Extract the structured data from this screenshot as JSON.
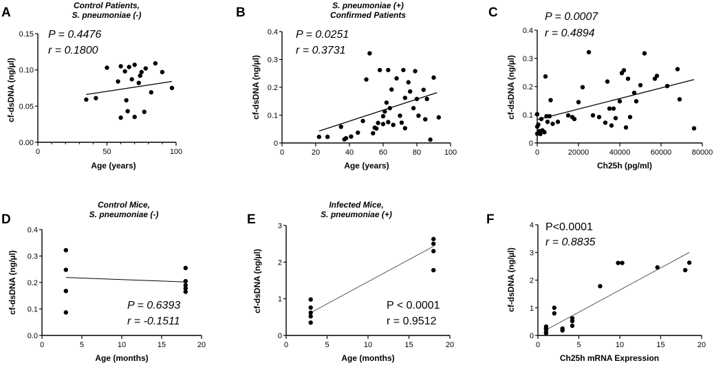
{
  "chart_data": [
    {
      "id": "A",
      "letter": "A",
      "type": "scatter",
      "title": [
        "Control Patients,",
        "S. pneumoniae (-)"
      ],
      "xlabel": "Age (years)",
      "ylabel": "cf-dsDNA (ng/µl)",
      "xlim": [
        0,
        100
      ],
      "ylim": [
        0,
        0.15
      ],
      "xticks": [
        0,
        50,
        100
      ],
      "xtick_labels": [
        "0",
        "50",
        "100"
      ],
      "xminor": 10,
      "yticks": [
        0,
        0.05,
        0.1,
        0.15
      ],
      "ytick_labels": [
        "0.00",
        "0.05",
        "0.10",
        "0.15"
      ],
      "stats": [
        "P = 0.4476",
        "r = 0.1800"
      ],
      "stats_italic": [
        true,
        true
      ],
      "fit": {
        "x": [
          35,
          97
        ],
        "y": [
          0.066,
          0.084
        ]
      },
      "x": [
        35,
        42,
        50,
        58,
        60,
        60,
        63,
        64,
        65,
        66,
        68,
        70,
        70,
        73,
        74,
        75,
        77,
        78,
        82,
        85,
        90,
        97
      ],
      "y": [
        0.059,
        0.061,
        0.103,
        0.084,
        0.034,
        0.105,
        0.098,
        0.058,
        0.043,
        0.104,
        0.087,
        0.107,
        0.035,
        0.082,
        0.092,
        0.097,
        0.042,
        0.102,
        0.069,
        0.109,
        0.097,
        0.075
      ]
    },
    {
      "id": "B",
      "letter": "B",
      "type": "scatter",
      "title": [
        "S. pneumoniae (+)",
        "Confirmed Patients"
      ],
      "xlabel": "Age (years)",
      "ylabel": "cf-dsDNA (ng/µl)",
      "xlim": [
        0,
        100
      ],
      "ylim": [
        0,
        0.4
      ],
      "xticks": [
        0,
        20,
        40,
        60,
        80,
        100
      ],
      "xtick_labels": [
        "0",
        "20",
        "40",
        "60",
        "80",
        "100"
      ],
      "xminor": 0,
      "yticks": [
        0,
        0.1,
        0.2,
        0.3,
        0.4
      ],
      "ytick_labels": [
        "0",
        "0.1",
        "0.2",
        "0.3",
        "0.4"
      ],
      "stats": [
        "P = 0.0251",
        "r = 0.3731"
      ],
      "stats_italic": [
        true,
        true
      ],
      "fit": {
        "x": [
          22,
          92
        ],
        "y": [
          0.043,
          0.181
        ]
      },
      "x": [
        22,
        27,
        35,
        37,
        38,
        41,
        45,
        48,
        50,
        52,
        54,
        55,
        56,
        57,
        58,
        60,
        60,
        61,
        62,
        63,
        63,
        64,
        65,
        66,
        68,
        70,
        71,
        72,
        73,
        73,
        75,
        76,
        78,
        79,
        80,
        81,
        84,
        85,
        86,
        88,
        90,
        93
      ],
      "y": [
        0.022,
        0.022,
        0.058,
        0.013,
        0.017,
        0.023,
        0.037,
        0.079,
        0.228,
        0.322,
        0.035,
        0.055,
        0.052,
        0.072,
        0.262,
        0.068,
        0.096,
        0.113,
        0.145,
        0.075,
        0.262,
        0.125,
        0.192,
        0.065,
        0.232,
        0.098,
        0.073,
        0.262,
        0.053,
        0.162,
        0.218,
        0.185,
        0.125,
        0.258,
        0.158,
        0.098,
        0.191,
        0.085,
        0.158,
        0.012,
        0.235,
        0.092
      ]
    },
    {
      "id": "C",
      "letter": "C",
      "type": "scatter",
      "title": [],
      "xlabel": "Ch25h (pg/ml)",
      "ylabel": "cf-dsDNA (ng/µl)",
      "xlim": [
        0,
        80000
      ],
      "ylim": [
        0,
        0.4
      ],
      "xticks": [
        0,
        20000,
        40000,
        60000,
        80000
      ],
      "xtick_labels": [
        "0",
        "20000",
        "40000",
        "60000",
        "80000"
      ],
      "xminor": 0,
      "yticks": [
        0,
        0.1,
        0.2,
        0.3,
        0.4
      ],
      "ytick_labels": [
        "0",
        "0.1",
        "0.2",
        "0.3",
        "0.4"
      ],
      "stats": [
        "P = 0.0007",
        "r = 0.4894"
      ],
      "stats_italic": [
        true,
        true
      ],
      "fit": {
        "x": [
          0,
          76000
        ],
        "y": [
          0.083,
          0.225
        ]
      },
      "x": [
        0,
        0,
        0,
        500,
        1000,
        1500,
        2000,
        2500,
        3500,
        4000,
        4500,
        5000,
        6000,
        6500,
        7500,
        10000,
        15000,
        17000,
        18000,
        20000,
        22000,
        25000,
        27000,
        30000,
        33000,
        34000,
        35000,
        36000,
        37000,
        38000,
        40000,
        41000,
        42000,
        43000,
        44000,
        45000,
        47000,
        48000,
        50000,
        52000,
        57000,
        58000,
        63000,
        68000,
        69000,
        76000
      ],
      "y": [
        0.033,
        0.058,
        0.102,
        0.065,
        0.042,
        0.032,
        0.085,
        0.045,
        0.038,
        0.236,
        0.095,
        0.075,
        0.095,
        0.152,
        0.068,
        0.075,
        0.098,
        0.092,
        0.085,
        0.145,
        0.198,
        0.322,
        0.098,
        0.092,
        0.072,
        0.218,
        0.122,
        0.062,
        0.122,
        0.088,
        0.148,
        0.248,
        0.258,
        0.055,
        0.228,
        0.092,
        0.178,
        0.148,
        0.205,
        0.318,
        0.228,
        0.238,
        0.202,
        0.262,
        0.155,
        0.052
      ]
    },
    {
      "id": "D",
      "letter": "D",
      "type": "scatter",
      "title": [
        "Control Mice,",
        "S. pneumoniae (-)"
      ],
      "xlabel": "Age (months)",
      "ylabel": "cf-dsDNA (ng/µl)",
      "xlim": [
        0,
        20
      ],
      "ylim": [
        0,
        0.4
      ],
      "xticks": [
        0,
        5,
        10,
        15,
        20
      ],
      "xtick_labels": [
        "0",
        "5",
        "10",
        "15",
        "20"
      ],
      "xminor": 0,
      "yticks": [
        0,
        0.1,
        0.2,
        0.3,
        0.4
      ],
      "ytick_labels": [
        "0.0",
        "0.1",
        "0.2",
        "0.3",
        "0.4"
      ],
      "stats": [
        "P = 0.6393",
        "r = -0.1511"
      ],
      "stats_italic": [
        true,
        true
      ],
      "fit": {
        "x": [
          3,
          18
        ],
        "y": [
          0.219,
          0.202
        ]
      },
      "x": [
        3,
        3,
        3,
        3,
        18,
        18,
        18,
        18,
        18
      ],
      "y": [
        0.322,
        0.248,
        0.168,
        0.087,
        0.255,
        0.205,
        0.19,
        0.178,
        0.165
      ]
    },
    {
      "id": "E",
      "letter": "E",
      "type": "scatter",
      "title": [
        "Infected Mice,",
        "S. pneumoniae (+)"
      ],
      "xlabel": "Age (months)",
      "ylabel": "cf-dsDNA (ng/µl)",
      "xlim": [
        0,
        20
      ],
      "ylim": [
        0,
        3
      ],
      "xticks": [
        0,
        5,
        10,
        15,
        20
      ],
      "xtick_labels": [
        "0",
        "5",
        "10",
        "15",
        "20"
      ],
      "xminor": 0,
      "yticks": [
        0,
        1,
        2,
        3
      ],
      "ytick_labels": [
        "0",
        "1",
        "2",
        "3"
      ],
      "stats": [
        "P < 0.0001",
        "r = 0.9512"
      ],
      "stats_italic": [
        false,
        false
      ],
      "fit": {
        "x": [
          3,
          18
        ],
        "y": [
          0.62,
          2.43
        ]
      },
      "x": [
        3,
        3,
        3,
        3,
        3,
        18,
        18,
        18,
        18
      ],
      "y": [
        0.98,
        0.76,
        0.62,
        0.52,
        0.35,
        2.63,
        2.5,
        2.3,
        1.78
      ]
    },
    {
      "id": "F",
      "letter": "F",
      "type": "scatter",
      "title": [],
      "xlabel": "Ch25h mRNA Expression",
      "ylabel": "cf-dsDNA (ng/µl)",
      "xlim": [
        0,
        20
      ],
      "ylim": [
        0,
        4
      ],
      "xticks": [
        0,
        5,
        10,
        15,
        20
      ],
      "xtick_labels": [
        "0",
        "5",
        "10",
        "15",
        "20"
      ],
      "xminor": 0,
      "yticks": [
        0,
        1,
        2,
        3,
        4
      ],
      "ytick_labels": [
        "0",
        "1",
        "2",
        "3",
        "4"
      ],
      "stats": [
        "P<0.0001",
        "r = 0.8835"
      ],
      "stats_italic": [
        false,
        true
      ],
      "fit": {
        "x": [
          1,
          18.5
        ],
        "y": [
          0.2,
          3.0
        ]
      },
      "x": [
        1,
        1,
        1,
        1,
        1,
        2,
        2,
        3,
        3,
        3,
        4.2,
        4.2,
        4.2,
        7.6,
        9.8,
        10.3,
        14.6,
        18,
        18.5
      ],
      "y": [
        0.32,
        0.22,
        0.12,
        0.08,
        0.25,
        1.0,
        0.8,
        0.25,
        0.18,
        0.2,
        0.62,
        0.52,
        0.35,
        1.78,
        2.62,
        2.62,
        2.46,
        2.36,
        2.63
      ]
    }
  ]
}
